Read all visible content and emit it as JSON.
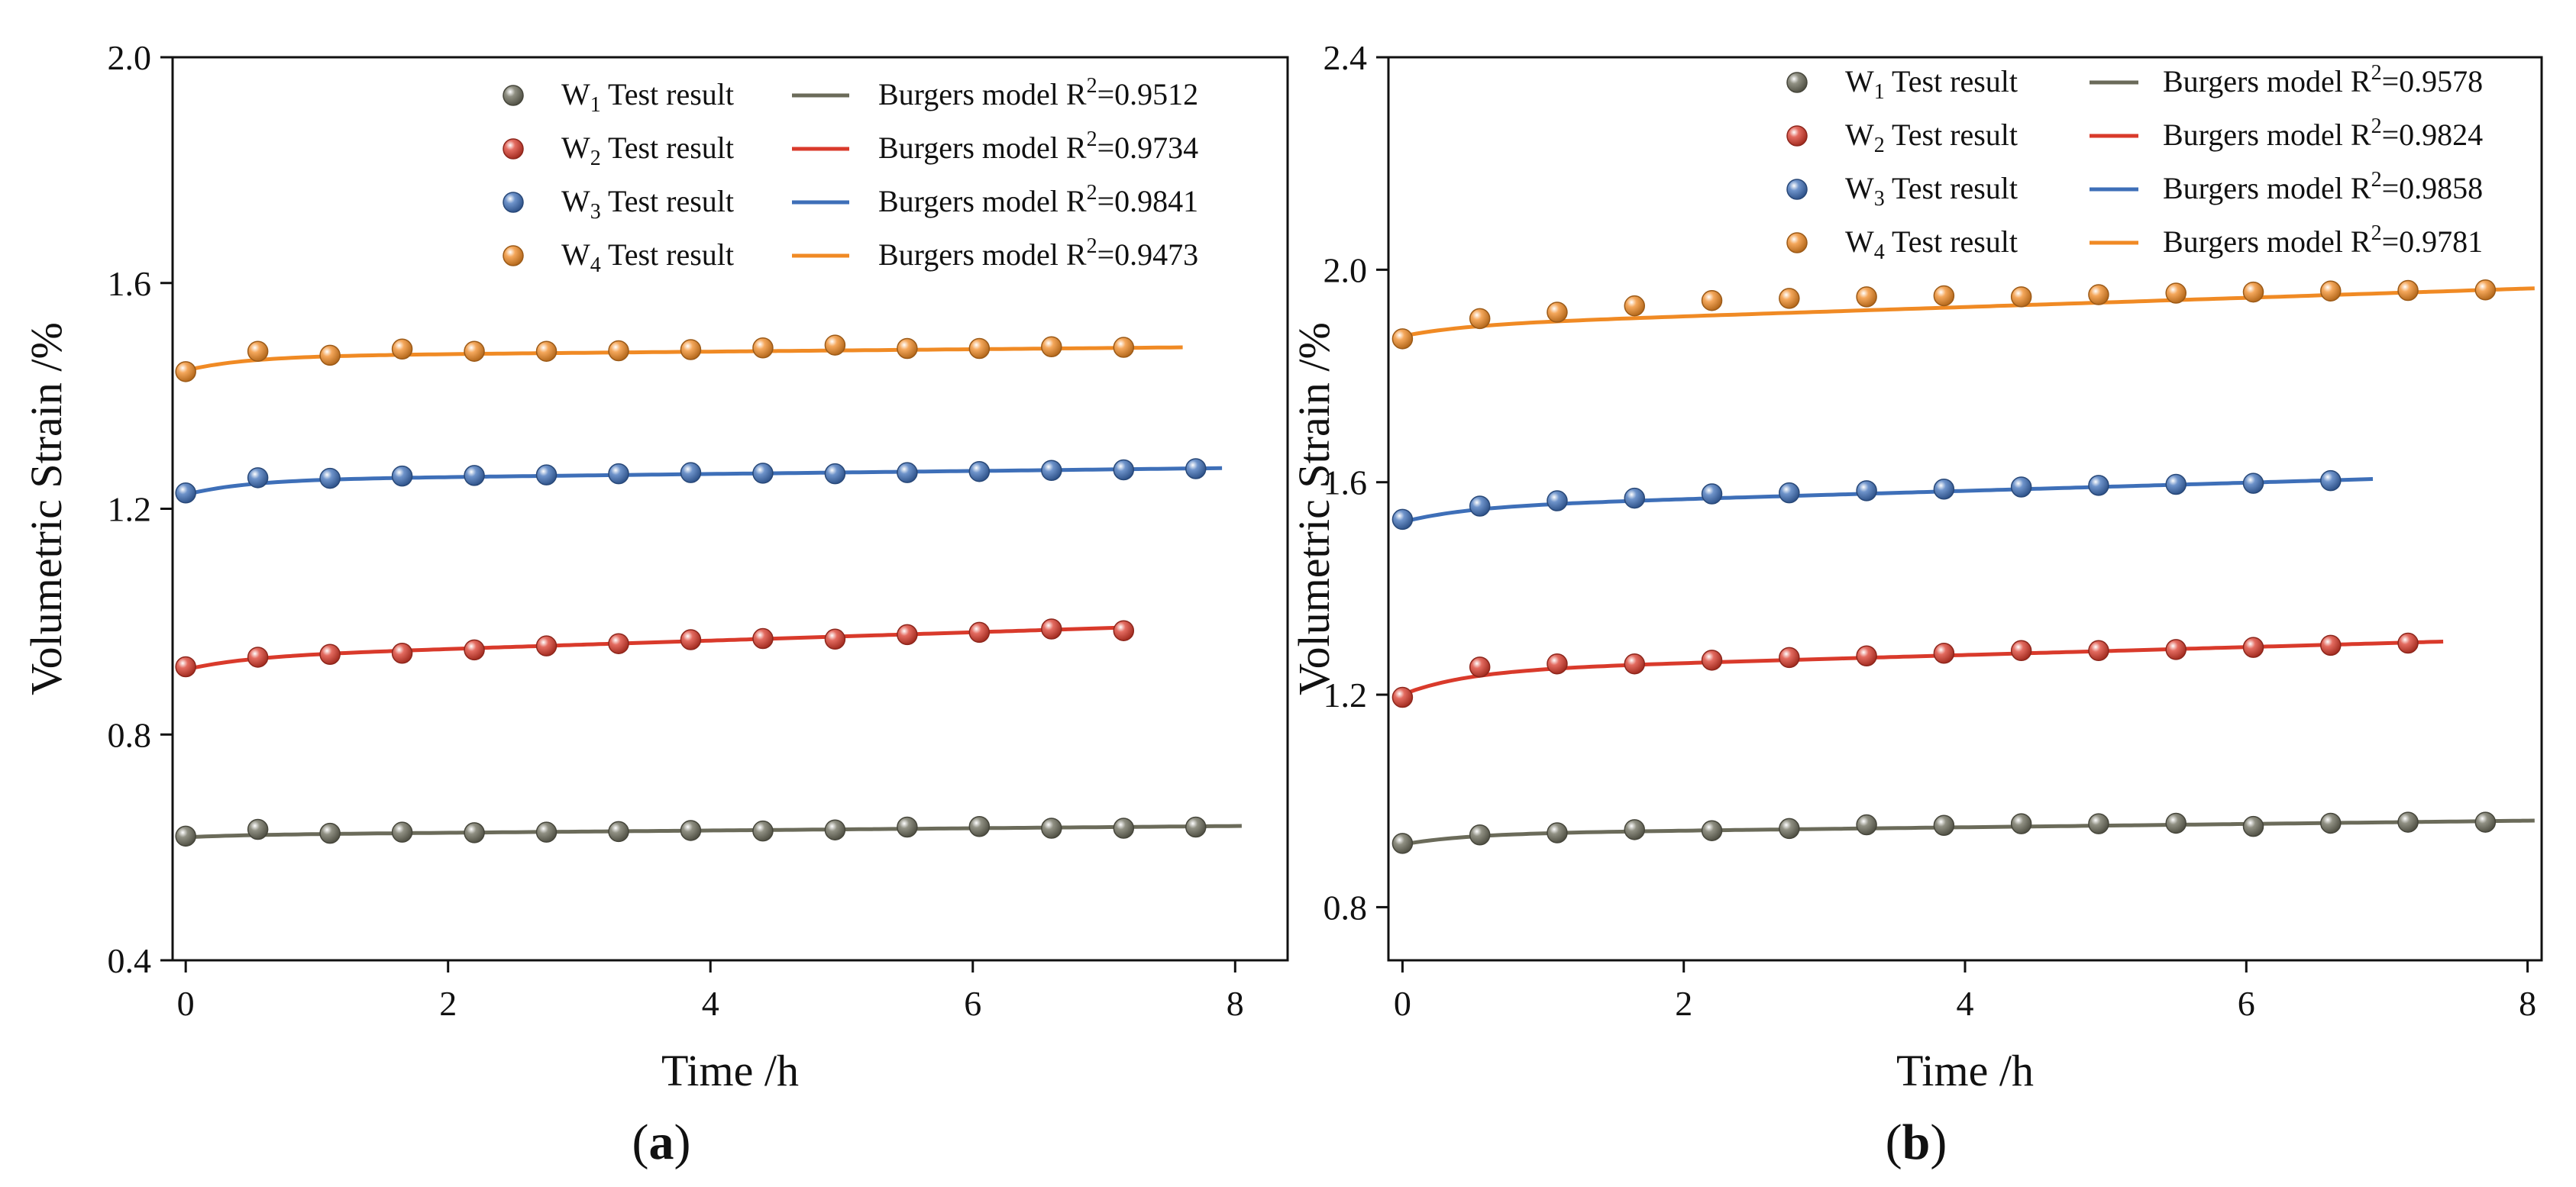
{
  "chart_data": [
    {
      "type": "scatter",
      "panel_label": "a",
      "xlabel": "Time /h",
      "ylabel": "Volumetric Strain /%",
      "xlim": [
        -0.1,
        8.4
      ],
      "ylim": [
        0.4,
        2.0
      ],
      "xticks": [
        "0",
        "2",
        "4",
        "6",
        "8"
      ],
      "yticks": [
        "0.4",
        "0.8",
        "1.2",
        "1.6",
        "2.0"
      ],
      "legend_position": "top-right",
      "series": [
        {
          "name": "W1",
          "letter": "W",
          "sub": "1",
          "point_label": "Test result",
          "model_label": "Burgers model",
          "r2_prefix": "R",
          "r2_sup": "2",
          "r2": "=0.9512",
          "color": "#6b6b5a",
          "x": [
            0,
            0.55,
            1.1,
            1.65,
            2.2,
            2.75,
            3.3,
            3.85,
            4.4,
            4.95,
            5.5,
            6.05,
            6.6,
            7.15,
            7.7
          ],
          "y": [
            0.62,
            0.632,
            0.625,
            0.627,
            0.626,
            0.627,
            0.628,
            0.63,
            0.629,
            0.631,
            0.636,
            0.637,
            0.634,
            0.634,
            0.636
          ],
          "fit_end": 8.05,
          "fit_start": 0.618,
          "fit_final": 0.638,
          "fit_jump": 0.004
        },
        {
          "name": "W2",
          "letter": "W",
          "sub": "2",
          "point_label": "Test result",
          "model_label": "Burgers model",
          "r2_prefix": "R",
          "r2_sup": "2",
          "r2": "=0.9734",
          "color": "#d93a2b",
          "x": [
            0,
            0.55,
            1.1,
            1.65,
            2.2,
            2.75,
            3.3,
            3.85,
            4.4,
            4.95,
            5.5,
            6.05,
            6.6,
            7.15
          ],
          "y": [
            0.92,
            0.937,
            0.942,
            0.944,
            0.95,
            0.957,
            0.961,
            0.968,
            0.97,
            0.969,
            0.977,
            0.981,
            0.987,
            0.984
          ],
          "fit_end": 7.2,
          "fit_start": 0.915,
          "fit_final": 0.99,
          "fit_jump": 0.022
        },
        {
          "name": "W3",
          "letter": "W",
          "sub": "3",
          "point_label": "Test result",
          "model_label": "Burgers model",
          "r2_prefix": "R",
          "r2_sup": "2",
          "r2": "=0.9841",
          "color": "#3e6fb8",
          "x": [
            0,
            0.55,
            1.1,
            1.65,
            2.2,
            2.75,
            3.3,
            3.85,
            4.4,
            4.95,
            5.5,
            6.05,
            6.6,
            7.15,
            7.7
          ],
          "y": [
            1.228,
            1.255,
            1.254,
            1.258,
            1.259,
            1.26,
            1.262,
            1.264,
            1.263,
            1.262,
            1.264,
            1.266,
            1.268,
            1.269,
            1.271
          ],
          "fit_end": 7.9,
          "fit_start": 1.225,
          "fit_final": 1.272,
          "fit_jump": 0.026
        },
        {
          "name": "W4",
          "letter": "W",
          "sub": "4",
          "point_label": "Test result",
          "model_label": "Burgers model",
          "r2_prefix": "R",
          "r2_sup": "2",
          "r2": "=0.9473",
          "color": "#f08a24",
          "x": [
            0,
            0.55,
            1.1,
            1.65,
            2.2,
            2.75,
            3.3,
            3.85,
            4.4,
            4.95,
            5.5,
            6.05,
            6.6,
            7.15
          ],
          "y": [
            1.443,
            1.479,
            1.472,
            1.483,
            1.479,
            1.479,
            1.48,
            1.482,
            1.485,
            1.49,
            1.484,
            1.484,
            1.487,
            1.486
          ],
          "fit_end": 7.6,
          "fit_start": 1.445,
          "fit_final": 1.486,
          "fit_jump": 0.025
        }
      ]
    },
    {
      "type": "scatter",
      "panel_label": "b",
      "xlabel": "Time /h",
      "ylabel": "Volumetric Strain /%",
      "xlim": [
        -0.1,
        8.1
      ],
      "ylim": [
        0.7,
        2.4
      ],
      "xticks": [
        "0",
        "2",
        "4",
        "6",
        "8"
      ],
      "yticks": [
        "0.8",
        "1.2",
        "1.6",
        "2.0",
        "2.4"
      ],
      "legend_position": "top-right",
      "series": [
        {
          "name": "W1",
          "letter": "W",
          "sub": "1",
          "point_label": "Test result",
          "model_label": "Burgers model",
          "r2_prefix": "R",
          "r2_sup": "2",
          "r2": "=0.9578",
          "color": "#6b6b5a",
          "x": [
            0,
            0.55,
            1.1,
            1.65,
            2.2,
            2.75,
            3.3,
            3.85,
            4.4,
            4.95,
            5.5,
            6.05,
            6.6,
            7.15,
            7.7
          ],
          "y": [
            0.92,
            0.936,
            0.94,
            0.946,
            0.944,
            0.948,
            0.955,
            0.954,
            0.957,
            0.957,
            0.958,
            0.952,
            0.958,
            0.96,
            0.96
          ],
          "fit_end": 8.05,
          "fit_start": 0.918,
          "fit_final": 0.963,
          "fit_jump": 0.02
        },
        {
          "name": "W2",
          "letter": "W",
          "sub": "2",
          "point_label": "Test result",
          "model_label": "Burgers model",
          "r2_prefix": "R",
          "r2_sup": "2",
          "r2": "=0.9824",
          "color": "#d93a2b",
          "x": [
            0,
            0.55,
            1.1,
            1.65,
            2.2,
            2.75,
            3.3,
            3.85,
            4.4,
            4.95,
            5.5,
            6.05,
            6.6,
            7.15
          ],
          "y": [
            1.195,
            1.252,
            1.258,
            1.258,
            1.265,
            1.27,
            1.273,
            1.278,
            1.283,
            1.283,
            1.285,
            1.289,
            1.293,
            1.297
          ],
          "fit_end": 7.4,
          "fit_start": 1.2,
          "fit_final": 1.3,
          "fit_jump": 0.045
        },
        {
          "name": "W3",
          "letter": "W",
          "sub": "3",
          "point_label": "Test result",
          "model_label": "Burgers model",
          "r2_prefix": "R",
          "r2_sup": "2",
          "r2": "=0.9858",
          "color": "#3e6fb8",
          "x": [
            0,
            0.55,
            1.1,
            1.65,
            2.2,
            2.75,
            3.3,
            3.85,
            4.4,
            4.95,
            5.5,
            6.05,
            6.6
          ],
          "y": [
            1.53,
            1.555,
            1.565,
            1.57,
            1.578,
            1.58,
            1.584,
            1.587,
            1.591,
            1.594,
            1.596,
            1.598,
            1.603
          ],
          "fit_end": 6.9,
          "fit_start": 1.525,
          "fit_final": 1.606,
          "fit_jump": 0.028
        },
        {
          "name": "W4",
          "letter": "W",
          "sub": "4",
          "point_label": "Test result",
          "model_label": "Burgers model",
          "r2_prefix": "R",
          "r2_sup": "2",
          "r2": "=0.9781",
          "color": "#f08a24",
          "x": [
            0,
            0.55,
            1.1,
            1.65,
            2.2,
            2.75,
            3.3,
            3.85,
            4.4,
            4.95,
            5.5,
            6.05,
            6.6,
            7.15,
            7.7
          ],
          "y": [
            1.87,
            1.908,
            1.92,
            1.932,
            1.942,
            1.946,
            1.949,
            1.951,
            1.949,
            1.953,
            1.956,
            1.958,
            1.96,
            1.961,
            1.962
          ],
          "fit_end": 8.05,
          "fit_start": 1.875,
          "fit_final": 1.965,
          "fit_jump": 0.02
        }
      ]
    }
  ]
}
